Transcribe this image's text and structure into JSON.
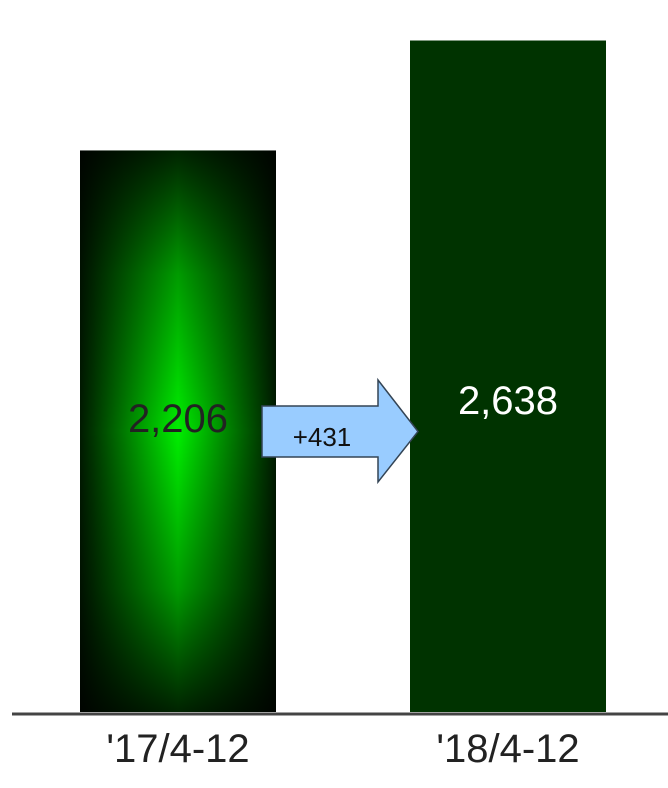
{
  "chart_data": {
    "type": "bar",
    "categories": [
      "'17/4-12",
      "'18/4-12"
    ],
    "values": [
      2206,
      2638
    ],
    "value_labels": [
      "2,206",
      "2,638"
    ],
    "ylim": [
      0,
      2750
    ],
    "grid": false,
    "legend": "none",
    "annotation": {
      "text": "+431",
      "from_category": "'17/4-12",
      "to_category": "'18/4-12"
    },
    "colors": {
      "bar_1_center": "#00ee00",
      "bar_1_edge": "#002200",
      "bar_2": "#003300",
      "bar_1_label": "#222222",
      "bar_2_label": "#ffffff",
      "arrow_fill": "#99ccff",
      "arrow_stroke": "#334455",
      "baseline": "#444444"
    }
  }
}
